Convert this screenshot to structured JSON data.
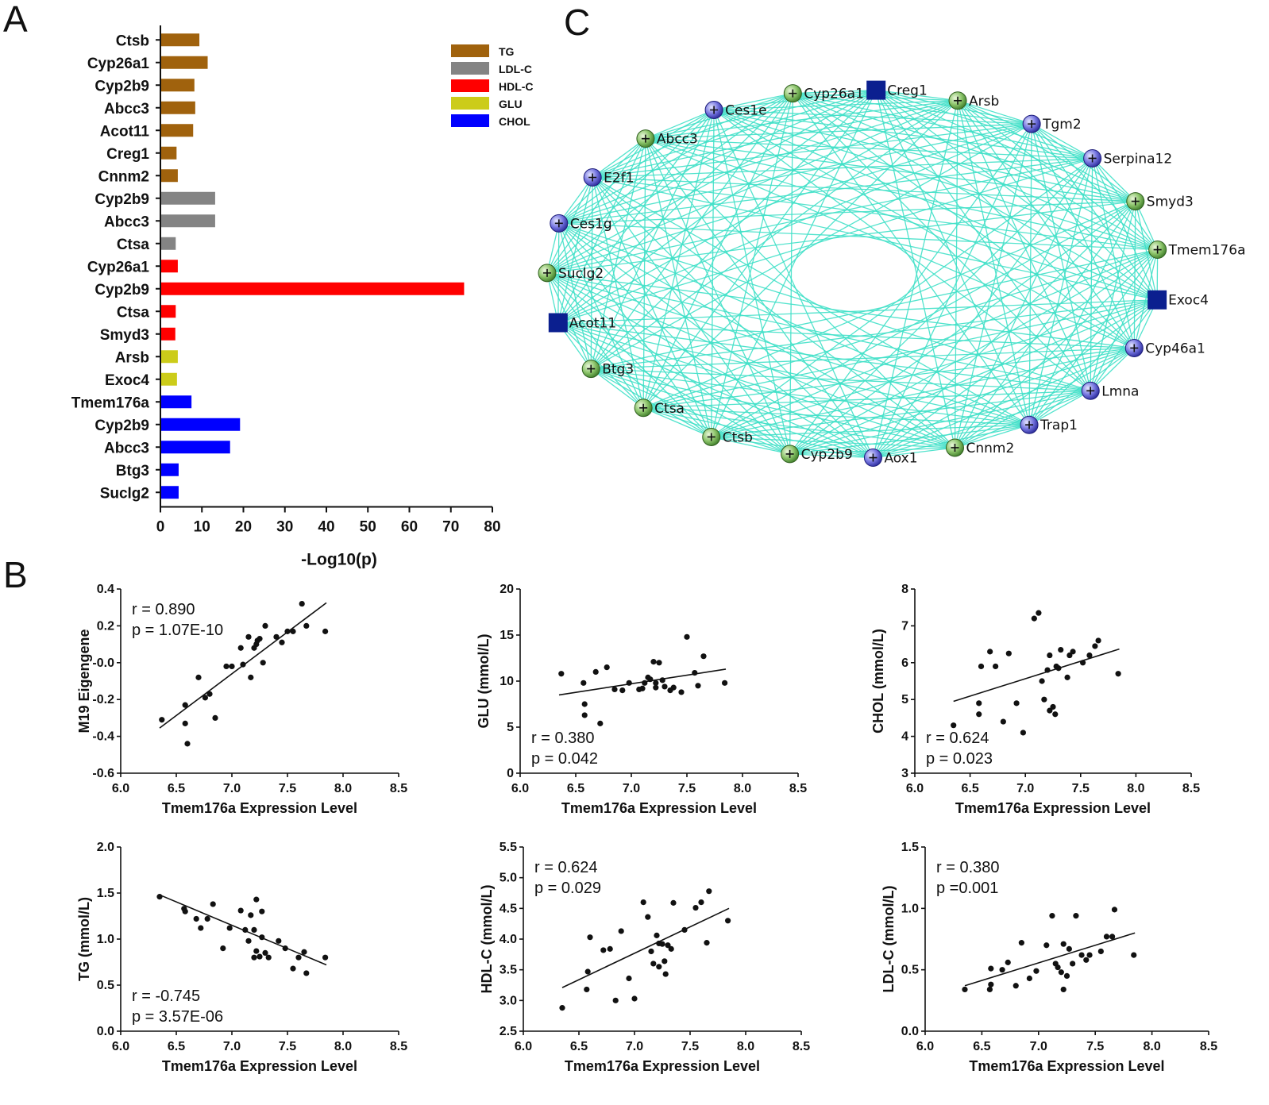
{
  "panels": {
    "a": "A",
    "b": "B",
    "c": "C"
  },
  "chart_data": [
    {
      "type": "bar",
      "orientation": "horizontal",
      "panel": "A",
      "categories": [
        "Ctsb",
        "Cyp26a1",
        "Cyp2b9",
        "Abcc3",
        "Acot11",
        "Creg1",
        "Cnnm2",
        "Cyp2b9",
        "Abcc3",
        "Ctsa",
        "Cyp26a1",
        "Cyp2b9",
        "Ctsa",
        "Smyd3",
        "Arsb",
        "Exoc4",
        "Tmem176a",
        "Cyp2b9",
        "Abcc3",
        "Btg3",
        "Suclg2"
      ],
      "values": [
        9.2,
        11.2,
        8.0,
        8.2,
        7.7,
        3.7,
        4.0,
        13.0,
        13.0,
        3.5,
        4.0,
        73.0,
        3.5,
        3.4,
        4.0,
        3.8,
        7.3,
        19.0,
        16.6,
        4.2,
        4.2
      ],
      "groups": [
        "TG",
        "TG",
        "TG",
        "TG",
        "TG",
        "TG",
        "TG",
        "LDL-C",
        "LDL-C",
        "LDL-C",
        "HDL-C",
        "HDL-C",
        "HDL-C",
        "HDL-C",
        "GLU",
        "GLU",
        "CHOL",
        "CHOL",
        "CHOL",
        "CHOL",
        "CHOL"
      ],
      "legend": [
        {
          "name": "TG",
          "color": "#A0620D"
        },
        {
          "name": "LDL-C",
          "color": "#848484"
        },
        {
          "name": "HDL-C",
          "color": "#FF0000"
        },
        {
          "name": "GLU",
          "color": "#CCCC1A"
        },
        {
          "name": "CHOL",
          "color": "#0000FF"
        }
      ],
      "xlabel": "-Log10(p)",
      "xlim": [
        0,
        80
      ],
      "xticks": [
        0,
        10,
        20,
        30,
        40,
        50,
        60,
        70,
        80
      ],
      "legend_position": "top-right"
    },
    {
      "type": "scatter",
      "panel": "B",
      "id": "m19",
      "ylabel": "M19 Eigengene",
      "xlabel": "Tmem176a Expression Level",
      "xlim": [
        6.0,
        8.5
      ],
      "xticks": [
        "6.0",
        "6.5",
        "7.0",
        "7.5",
        "8.0",
        "8.5"
      ],
      "ylim": [
        -0.6,
        0.4
      ],
      "yticks": [
        "-0.6",
        "-0.4",
        "-0.2",
        "-0.0",
        "0.2",
        "0.4"
      ],
      "r": "r = 0.890",
      "p": "p = 1.07E-10",
      "fit": [
        [
          6.35,
          -0.355
        ],
        [
          7.85,
          0.325
        ]
      ],
      "points": [
        [
          6.37,
          -0.31
        ],
        [
          6.58,
          -0.23
        ],
        [
          6.58,
          -0.33
        ],
        [
          6.6,
          -0.44
        ],
        [
          6.7,
          -0.08
        ],
        [
          6.76,
          -0.19
        ],
        [
          6.8,
          -0.17
        ],
        [
          6.85,
          -0.3
        ],
        [
          6.95,
          -0.02
        ],
        [
          7.0,
          -0.02
        ],
        [
          7.08,
          0.08
        ],
        [
          7.1,
          -0.01
        ],
        [
          7.15,
          0.14
        ],
        [
          7.17,
          -0.08
        ],
        [
          7.2,
          0.08
        ],
        [
          7.22,
          0.1
        ],
        [
          7.23,
          0.12
        ],
        [
          7.25,
          0.13
        ],
        [
          7.28,
          0.0
        ],
        [
          7.3,
          0.2
        ],
        [
          7.4,
          0.14
        ],
        [
          7.45,
          0.11
        ],
        [
          7.5,
          0.17
        ],
        [
          7.55,
          0.17
        ],
        [
          7.63,
          0.32
        ],
        [
          7.67,
          0.2
        ],
        [
          7.84,
          0.17
        ]
      ]
    },
    {
      "type": "scatter",
      "panel": "B",
      "id": "glu",
      "ylabel": "GLU (mmol/L)",
      "xlabel": "Tmem176a Expression Level",
      "xlim": [
        6.0,
        8.5
      ],
      "xticks": [
        "6.0",
        "6.5",
        "7.0",
        "7.5",
        "8.0",
        "8.5"
      ],
      "ylim": [
        0,
        20
      ],
      "yticks": [
        "0",
        "5",
        "10",
        "15",
        "20"
      ],
      "r": "r = 0.380",
      "p": "p = 0.042",
      "fit": [
        [
          6.35,
          8.5
        ],
        [
          7.85,
          11.3
        ]
      ],
      "points": [
        [
          6.37,
          10.8
        ],
        [
          6.57,
          9.8
        ],
        [
          6.58,
          7.5
        ],
        [
          6.58,
          6.3
        ],
        [
          6.68,
          11.0
        ],
        [
          6.72,
          5.4
        ],
        [
          6.78,
          11.5
        ],
        [
          6.85,
          9.1
        ],
        [
          6.92,
          9.0
        ],
        [
          6.98,
          9.8
        ],
        [
          7.07,
          9.1
        ],
        [
          7.1,
          9.2
        ],
        [
          7.12,
          9.8
        ],
        [
          7.15,
          10.4
        ],
        [
          7.17,
          10.2
        ],
        [
          7.2,
          12.1
        ],
        [
          7.22,
          9.3
        ],
        [
          7.22,
          9.8
        ],
        [
          7.25,
          12.0
        ],
        [
          7.28,
          10.1
        ],
        [
          7.3,
          9.4
        ],
        [
          7.35,
          9.0
        ],
        [
          7.38,
          9.3
        ],
        [
          7.45,
          8.8
        ],
        [
          7.5,
          14.8
        ],
        [
          7.57,
          10.9
        ],
        [
          7.6,
          9.5
        ],
        [
          7.65,
          12.7
        ],
        [
          7.84,
          9.8
        ]
      ]
    },
    {
      "type": "scatter",
      "panel": "B",
      "id": "chol",
      "ylabel": "CHOL (mmol/L)",
      "xlabel": "Tmem176a Expression Level",
      "xlim": [
        6.0,
        8.5
      ],
      "xticks": [
        "6.0",
        "6.5",
        "7.0",
        "7.5",
        "8.0",
        "8.5"
      ],
      "ylim": [
        3,
        8
      ],
      "yticks": [
        "3",
        "4",
        "5",
        "6",
        "7",
        "8"
      ],
      "r": "r = 0.624",
      "p": "p = 0.023",
      "fit": [
        [
          6.35,
          4.95
        ],
        [
          7.85,
          6.37
        ]
      ],
      "points": [
        [
          6.35,
          4.3
        ],
        [
          6.58,
          4.6
        ],
        [
          6.58,
          4.9
        ],
        [
          6.6,
          5.9
        ],
        [
          6.68,
          6.3
        ],
        [
          6.73,
          5.9
        ],
        [
          6.8,
          4.4
        ],
        [
          6.85,
          6.25
        ],
        [
          6.92,
          4.9
        ],
        [
          6.98,
          4.1
        ],
        [
          7.08,
          7.2
        ],
        [
          7.12,
          7.35
        ],
        [
          7.15,
          5.5
        ],
        [
          7.17,
          5.0
        ],
        [
          7.2,
          5.8
        ],
        [
          7.22,
          6.2
        ],
        [
          7.22,
          4.7
        ],
        [
          7.25,
          4.8
        ],
        [
          7.27,
          4.6
        ],
        [
          7.28,
          5.9
        ],
        [
          7.3,
          5.85
        ],
        [
          7.32,
          6.35
        ],
        [
          7.38,
          5.6
        ],
        [
          7.4,
          6.2
        ],
        [
          7.43,
          6.3
        ],
        [
          7.52,
          6.0
        ],
        [
          7.58,
          6.2
        ],
        [
          7.63,
          6.45
        ],
        [
          7.66,
          6.6
        ],
        [
          7.84,
          5.7
        ]
      ]
    },
    {
      "type": "scatter",
      "panel": "B",
      "id": "tg",
      "ylabel": "TG (mmol/L)",
      "xlabel": "Tmem176a Expression Level",
      "xlim": [
        6.0,
        8.5
      ],
      "xticks": [
        "6.0",
        "6.5",
        "7.0",
        "7.5",
        "8.0",
        "8.5"
      ],
      "ylim": [
        0.0,
        2.0
      ],
      "yticks": [
        "0.0",
        "0.5",
        "1.0",
        "1.5",
        "2.0"
      ],
      "r": "r = -0.745",
      "p": "p = 3.57E-06",
      "fit": [
        [
          6.35,
          1.48
        ],
        [
          7.85,
          0.72
        ]
      ],
      "points": [
        [
          6.35,
          1.46
        ],
        [
          6.57,
          1.33
        ],
        [
          6.58,
          1.3
        ],
        [
          6.68,
          1.22
        ],
        [
          6.72,
          1.12
        ],
        [
          6.78,
          1.22
        ],
        [
          6.83,
          1.38
        ],
        [
          6.92,
          0.9
        ],
        [
          6.98,
          1.12
        ],
        [
          7.08,
          1.31
        ],
        [
          7.12,
          1.1
        ],
        [
          7.15,
          0.98
        ],
        [
          7.17,
          1.26
        ],
        [
          7.2,
          1.1
        ],
        [
          7.2,
          0.8
        ],
        [
          7.22,
          1.43
        ],
        [
          7.22,
          0.87
        ],
        [
          7.25,
          0.81
        ],
        [
          7.27,
          1.02
        ],
        [
          7.27,
          1.3
        ],
        [
          7.3,
          0.85
        ],
        [
          7.33,
          0.8
        ],
        [
          7.42,
          0.98
        ],
        [
          7.48,
          0.9
        ],
        [
          7.55,
          0.68
        ],
        [
          7.6,
          0.8
        ],
        [
          7.65,
          0.86
        ],
        [
          7.67,
          0.63
        ],
        [
          7.84,
          0.8
        ]
      ]
    },
    {
      "type": "scatter",
      "panel": "B",
      "id": "hdl",
      "ylabel": "HDL-C (mmol/L)",
      "xlabel": "Tmem176a Expression Level",
      "xlim": [
        6.0,
        8.5
      ],
      "xticks": [
        "6.0",
        "6.5",
        "7.0",
        "7.5",
        "8.0",
        "8.5"
      ],
      "ylim": [
        2.5,
        5.5
      ],
      "yticks": [
        "2.5",
        "3.0",
        "3.5",
        "4.0",
        "4.5",
        "5.0",
        "5.5"
      ],
      "r": "r = 0.624",
      "p": "p = 0.029",
      "fit": [
        [
          6.35,
          3.21
        ],
        [
          7.85,
          4.5
        ]
      ],
      "points": [
        [
          6.35,
          2.88
        ],
        [
          6.57,
          3.18
        ],
        [
          6.58,
          3.47
        ],
        [
          6.6,
          4.03
        ],
        [
          6.72,
          3.82
        ],
        [
          6.78,
          3.84
        ],
        [
          6.83,
          3.0
        ],
        [
          6.88,
          4.13
        ],
        [
          6.95,
          3.36
        ],
        [
          7.0,
          3.03
        ],
        [
          7.08,
          4.6
        ],
        [
          7.12,
          4.36
        ],
        [
          7.15,
          3.8
        ],
        [
          7.17,
          3.6
        ],
        [
          7.2,
          4.06
        ],
        [
          7.22,
          3.55
        ],
        [
          7.22,
          3.93
        ],
        [
          7.25,
          3.92
        ],
        [
          7.27,
          3.64
        ],
        [
          7.28,
          3.43
        ],
        [
          7.3,
          3.9
        ],
        [
          7.33,
          3.84
        ],
        [
          7.35,
          4.59
        ],
        [
          7.45,
          4.15
        ],
        [
          7.55,
          4.51
        ],
        [
          7.6,
          4.6
        ],
        [
          7.67,
          4.78
        ],
        [
          7.65,
          3.94
        ],
        [
          7.84,
          4.3
        ]
      ]
    },
    {
      "type": "scatter",
      "panel": "B",
      "id": "ldl",
      "ylabel": "LDL-C (mmol/L)",
      "xlabel": "Tmem176a Expression Level",
      "xlim": [
        6.0,
        8.5
      ],
      "xticks": [
        "6.0",
        "6.5",
        "7.0",
        "7.5",
        "8.0",
        "8.5"
      ],
      "ylim": [
        0.0,
        1.5
      ],
      "yticks": [
        "0.0",
        "0.5",
        "1.0",
        "1.5"
      ],
      "r": "r = 0.380",
      "p": "p =0.001",
      "fit": [
        [
          6.35,
          0.37
        ],
        [
          7.85,
          0.8
        ]
      ],
      "points": [
        [
          6.35,
          0.34
        ],
        [
          6.57,
          0.34
        ],
        [
          6.58,
          0.38
        ],
        [
          6.58,
          0.51
        ],
        [
          6.68,
          0.5
        ],
        [
          6.73,
          0.56
        ],
        [
          6.8,
          0.37
        ],
        [
          6.85,
          0.72
        ],
        [
          6.92,
          0.43
        ],
        [
          6.98,
          0.49
        ],
        [
          7.07,
          0.7
        ],
        [
          7.12,
          0.94
        ],
        [
          7.15,
          0.55
        ],
        [
          7.17,
          0.52
        ],
        [
          7.2,
          0.48
        ],
        [
          7.22,
          0.34
        ],
        [
          7.22,
          0.71
        ],
        [
          7.25,
          0.45
        ],
        [
          7.27,
          0.67
        ],
        [
          7.3,
          0.55
        ],
        [
          7.33,
          0.94
        ],
        [
          7.38,
          0.62
        ],
        [
          7.42,
          0.58
        ],
        [
          7.45,
          0.62
        ],
        [
          7.55,
          0.65
        ],
        [
          7.6,
          0.77
        ],
        [
          7.65,
          0.77
        ],
        [
          7.67,
          0.99
        ],
        [
          7.84,
          0.62
        ]
      ]
    }
  ],
  "network": {
    "nodes": [
      {
        "name": "Cyp26a1",
        "shape": "circle",
        "color": "green"
      },
      {
        "name": "Creg1",
        "shape": "square",
        "color": "navy"
      },
      {
        "name": "Arsb",
        "shape": "circle",
        "color": "green"
      },
      {
        "name": "Tgm2",
        "shape": "circle",
        "color": "blue"
      },
      {
        "name": "Serpina12",
        "shape": "circle",
        "color": "blue"
      },
      {
        "name": "Smyd3",
        "shape": "circle",
        "color": "green"
      },
      {
        "name": "Tmem176a",
        "shape": "circle",
        "color": "green"
      },
      {
        "name": "Exoc4",
        "shape": "square",
        "color": "navy"
      },
      {
        "name": "Cyp46a1",
        "shape": "circle",
        "color": "blue"
      },
      {
        "name": "Lmna",
        "shape": "circle",
        "color": "blue"
      },
      {
        "name": "Trap1",
        "shape": "circle",
        "color": "blue"
      },
      {
        "name": "Cnnm2",
        "shape": "circle",
        "color": "green"
      },
      {
        "name": "Aox1",
        "shape": "circle",
        "color": "blue"
      },
      {
        "name": "Cyp2b9",
        "shape": "circle",
        "color": "green"
      },
      {
        "name": "Ctsb",
        "shape": "circle",
        "color": "green"
      },
      {
        "name": "Ctsa",
        "shape": "circle",
        "color": "green"
      },
      {
        "name": "Btg3",
        "shape": "circle",
        "color": "green"
      },
      {
        "name": "Acot11",
        "shape": "square",
        "color": "navy"
      },
      {
        "name": "Suclg2",
        "shape": "circle",
        "color": "green"
      },
      {
        "name": "Ces1g",
        "shape": "circle",
        "color": "blue"
      },
      {
        "name": "E2f1",
        "shape": "circle",
        "color": "blue"
      },
      {
        "name": "Abcc3",
        "shape": "circle",
        "color": "green"
      },
      {
        "name": "Ces1e",
        "shape": "circle",
        "color": "blue"
      }
    ],
    "edge_color": "#40E0C8"
  }
}
